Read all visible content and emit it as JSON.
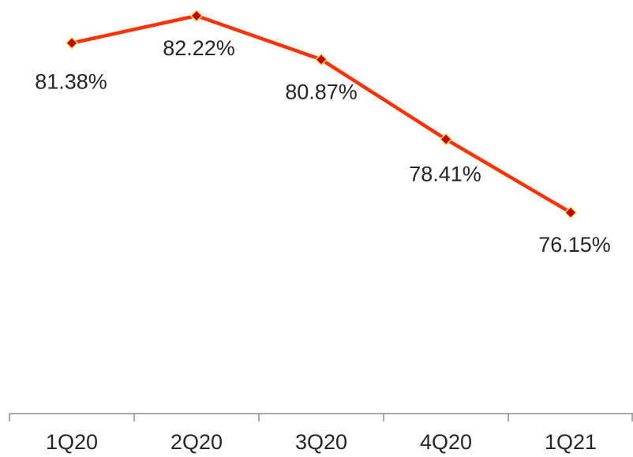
{
  "chart_data": {
    "type": "line",
    "categories": [
      "1Q20",
      "2Q20",
      "3Q20",
      "4Q20",
      "1Q21"
    ],
    "series": [
      {
        "values": [
          81.38,
          82.22,
          80.87,
          78.41,
          76.15
        ],
        "labels": [
          "81.38%",
          "82.22%",
          "80.87%",
          "78.41%",
          "76.15%"
        ],
        "line_color": "#FF3300",
        "marker_color": "#C00000",
        "marker_edge_color": "#FFD966",
        "marker": "diamond"
      }
    ],
    "grid": false,
    "legend": "none",
    "axis_color": "#8C8C8C"
  }
}
